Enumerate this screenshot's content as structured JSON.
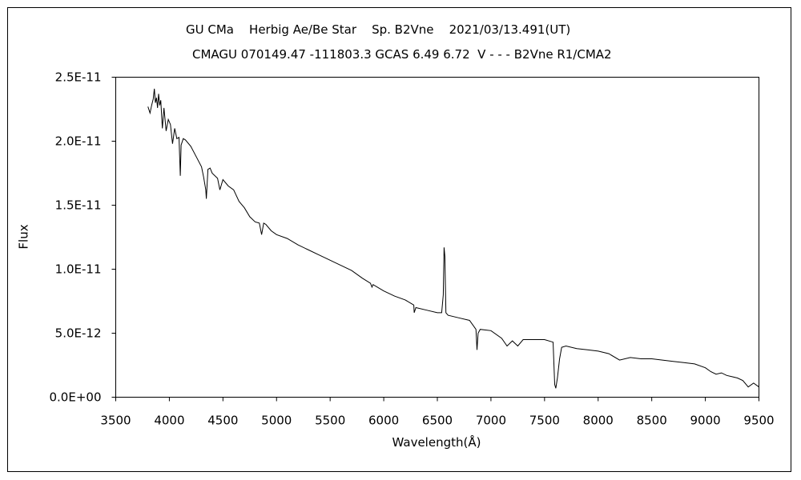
{
  "title_line1": "GU CMa    Herbig Ae/Be Star    Sp. B2Vne    2021/03/13.491(UT)",
  "title_line2": "CMAGU 070149.47 -111803.3 GCAS 6.49 6.72  V - - - B2Vne R1/CMA2",
  "chart_data": {
    "type": "line",
    "title": "GU CMa    Herbig Ae/Be Star    Sp. B2Vne    2021/03/13.491(UT)",
    "subtitle": "CMAGU 070149.47 -111803.3 GCAS 6.49 6.72  V - - - B2Vne R1/CMA2",
    "xlabel": "Wavelength(Å)",
    "ylabel": "Flux",
    "xlim": [
      3500,
      9500
    ],
    "ylim": [
      0,
      2.5e-11
    ],
    "grid": false,
    "x_ticks": [
      "3500",
      "4000",
      "4500",
      "5000",
      "5500",
      "6000",
      "6500",
      "7000",
      "7500",
      "8000",
      "8500",
      "9000",
      "9500"
    ],
    "y_ticks": [
      "0.0E+00",
      "5.0E-12",
      "1.0E-11",
      "1.5E-11",
      "2.0E-11",
      "2.5E-11"
    ],
    "series": [
      {
        "color": "#000000",
        "x": [
          3800,
          3820,
          3835,
          3850,
          3860,
          3870,
          3880,
          3890,
          3900,
          3910,
          3920,
          3935,
          3950,
          3970,
          3990,
          4010,
          4030,
          4050,
          4070,
          4090,
          4102,
          4110,
          4130,
          4150,
          4200,
          4250,
          4300,
          4320,
          4340,
          4345,
          4360,
          4380,
          4400,
          4450,
          4471,
          4500,
          4550,
          4600,
          4650,
          4700,
          4750,
          4800,
          4840,
          4861,
          4880,
          4900,
          4950,
          5000,
          5100,
          5200,
          5300,
          5400,
          5500,
          5600,
          5700,
          5800,
          5876,
          5890,
          5900,
          6000,
          6100,
          6200,
          6280,
          6284,
          6300,
          6400,
          6500,
          6540,
          6555,
          6563,
          6570,
          6580,
          6600,
          6700,
          6800,
          6860,
          6870,
          6880,
          6900,
          7000,
          7100,
          7150,
          7200,
          7250,
          7300,
          7400,
          7500,
          7580,
          7595,
          7605,
          7620,
          7640,
          7660,
          7700,
          7800,
          7900,
          8000,
          8100,
          8200,
          8300,
          8400,
          8500,
          8600,
          8700,
          8800,
          8900,
          9000,
          9050,
          9100,
          9150,
          9200,
          9250,
          9300,
          9350,
          9400,
          9450,
          9500
        ],
        "y": [
          2.27e-11,
          2.22e-11,
          2.28e-11,
          2.33e-11,
          2.41e-11,
          2.3e-11,
          2.34e-11,
          2.26e-11,
          2.37e-11,
          2.28e-11,
          2.32e-11,
          2.1e-11,
          2.26e-11,
          2.08e-11,
          2.17e-11,
          2.13e-11,
          1.98e-11,
          2.1e-11,
          2.02e-11,
          2.03e-11,
          1.73e-11,
          1.97e-11,
          2.02e-11,
          2.01e-11,
          1.96e-11,
          1.88e-11,
          1.8e-11,
          1.72e-11,
          1.62e-11,
          1.55e-11,
          1.78e-11,
          1.79e-11,
          1.75e-11,
          1.71e-11,
          1.62e-11,
          1.7e-11,
          1.65e-11,
          1.62e-11,
          1.53e-11,
          1.48e-11,
          1.41e-11,
          1.37e-11,
          1.36e-11,
          1.27e-11,
          1.36e-11,
          1.35e-11,
          1.3e-11,
          1.27e-11,
          1.24e-11,
          1.19e-11,
          1.15e-11,
          1.11e-11,
          1.07e-11,
          1.03e-11,
          9.9e-12,
          9.3e-12,
          8.9e-12,
          8.6e-12,
          8.8e-12,
          8.3e-12,
          7.9e-12,
          7.6e-12,
          7.2e-12,
          6.6e-12,
          7e-12,
          6.8e-12,
          6.6e-12,
          6.6e-12,
          8e-12,
          1.17e-11,
          1.1e-11,
          6.6e-12,
          6.4e-12,
          6.2e-12,
          6e-12,
          5.3e-12,
          3.7e-12,
          5e-12,
          5.3e-12,
          5.2e-12,
          4.6e-12,
          4e-12,
          4.4e-12,
          4e-12,
          4.5e-12,
          4.5e-12,
          4.5e-12,
          4.3e-12,
          1e-12,
          7e-13,
          1.5e-12,
          3e-12,
          3.9e-12,
          4e-12,
          3.8e-12,
          3.7e-12,
          3.6e-12,
          3.4e-12,
          2.9e-12,
          3.1e-12,
          3e-12,
          3e-12,
          2.9e-12,
          2.8e-12,
          2.7e-12,
          2.6e-12,
          2.3e-12,
          2e-12,
          1.8e-12,
          1.9e-12,
          1.7e-12,
          1.6e-12,
          1.5e-12,
          1.3e-12,
          8e-13,
          1.1e-12,
          8e-13
        ]
      }
    ]
  }
}
